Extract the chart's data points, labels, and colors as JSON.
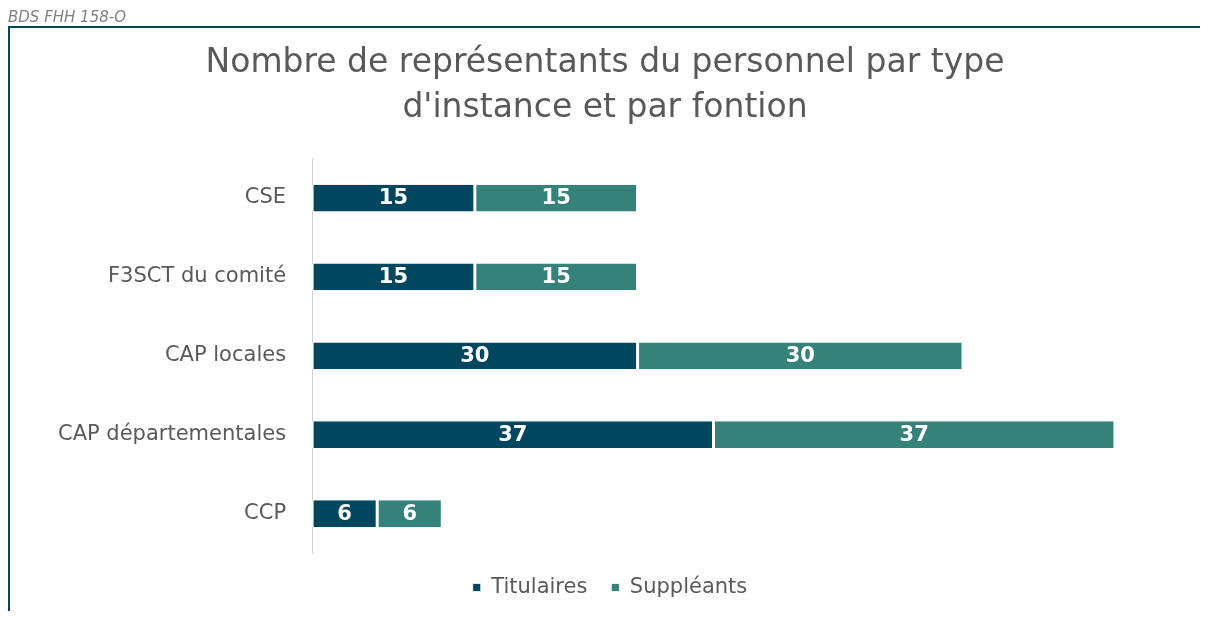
{
  "chart_data": {
    "type": "bar",
    "orientation": "horizontal",
    "stacked": true,
    "title": "Nombre de représentants du personnel par type d'instance et par fontion",
    "annotations": [
      "BDS FHH 158-O"
    ],
    "categories": [
      "CSE",
      "F3SCT du comité",
      "CAP locales",
      "CAP départementales",
      "CCP"
    ],
    "series": [
      {
        "name": "Titulaires",
        "color": "#00465f",
        "values": [
          15,
          15,
          30,
          37,
          6
        ]
      },
      {
        "name": "Suppléants",
        "color": "#35827a",
        "values": [
          15,
          15,
          30,
          37,
          6
        ]
      }
    ],
    "data_labels": true,
    "legend": "bottom"
  }
}
